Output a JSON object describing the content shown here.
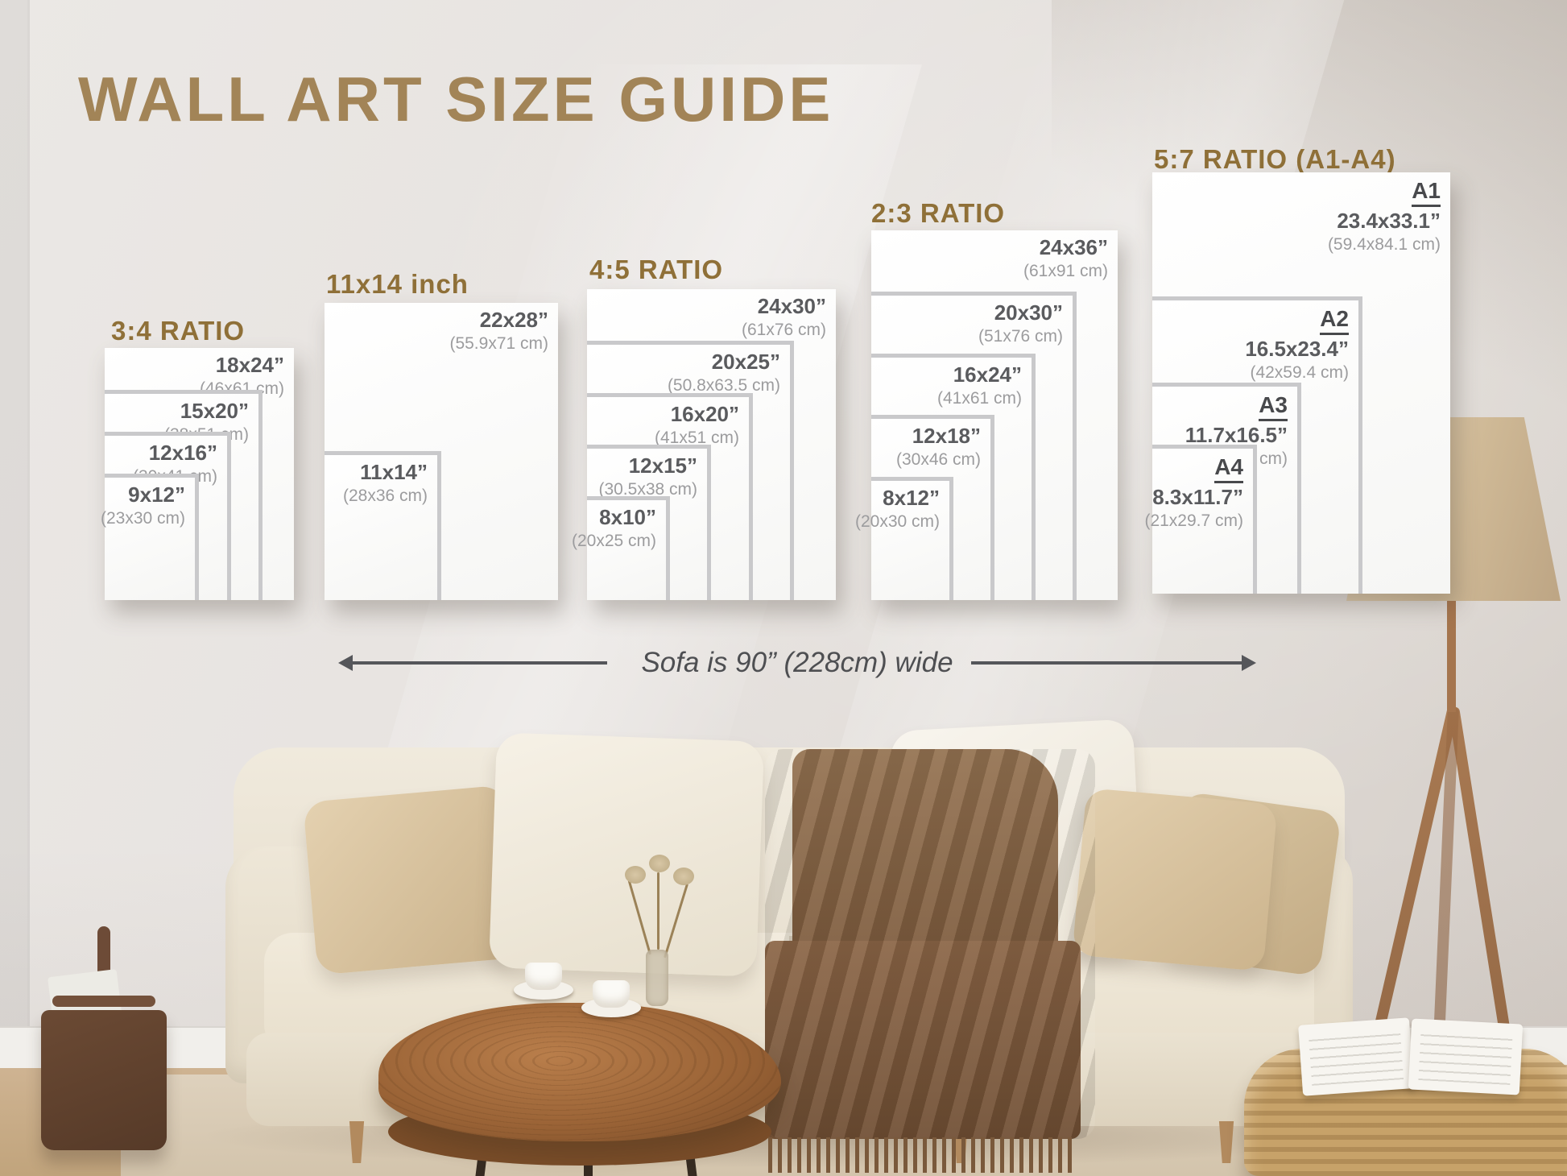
{
  "title": "WALL ART SIZE GUIDE",
  "sofa_note": "Sofa is 90” (228cm) wide",
  "accent_color": "#a28457",
  "heading_color": "#8f7038",
  "panels": [
    {
      "heading": "3:4 RATIO",
      "sizes": [
        {
          "label": "18x24”",
          "cm": "(46x61 cm)"
        },
        {
          "label": "15x20”",
          "cm": "(38x51 cm)"
        },
        {
          "label": "12x16”",
          "cm": "(30x41 cm)"
        },
        {
          "label": "9x12”",
          "cm": "(23x30 cm)"
        }
      ]
    },
    {
      "heading": "11x14 inch",
      "sizes": [
        {
          "label": "22x28”",
          "cm": "(55.9x71 cm)"
        },
        {
          "label": "11x14”",
          "cm": "(28x36 cm)"
        }
      ]
    },
    {
      "heading": "4:5 RATIO",
      "sizes": [
        {
          "label": "24x30”",
          "cm": "(61x76 cm)"
        },
        {
          "label": "20x25”",
          "cm": "(50.8x63.5 cm)"
        },
        {
          "label": "16x20”",
          "cm": "(41x51 cm)"
        },
        {
          "label": "12x15”",
          "cm": "(30.5x38 cm)"
        },
        {
          "label": "8x10”",
          "cm": "(20x25 cm)"
        }
      ]
    },
    {
      "heading": "2:3 RATIO",
      "sizes": [
        {
          "label": "24x36”",
          "cm": "(61x91 cm)"
        },
        {
          "label": "20x30”",
          "cm": "(51x76 cm)"
        },
        {
          "label": "16x24”",
          "cm": "(41x61 cm)"
        },
        {
          "label": "12x18”",
          "cm": "(30x46 cm)"
        },
        {
          "label": "8x12”",
          "cm": "(20x30 cm)"
        }
      ]
    },
    {
      "heading": "5:7 RATIO (A1-A4)",
      "sizes": [
        {
          "tag": "A1",
          "label": "23.4x33.1”",
          "cm": "(59.4x84.1 cm)"
        },
        {
          "tag": "A2",
          "label": "16.5x23.4”",
          "cm": "(42x59.4 cm)"
        },
        {
          "tag": "A3",
          "label": "11.7x16.5”",
          "cm": "(29.7x42 cm)"
        },
        {
          "tag": "A4",
          "label": "8.3x11.7”",
          "cm": "(21x29.7 cm)"
        }
      ]
    }
  ]
}
